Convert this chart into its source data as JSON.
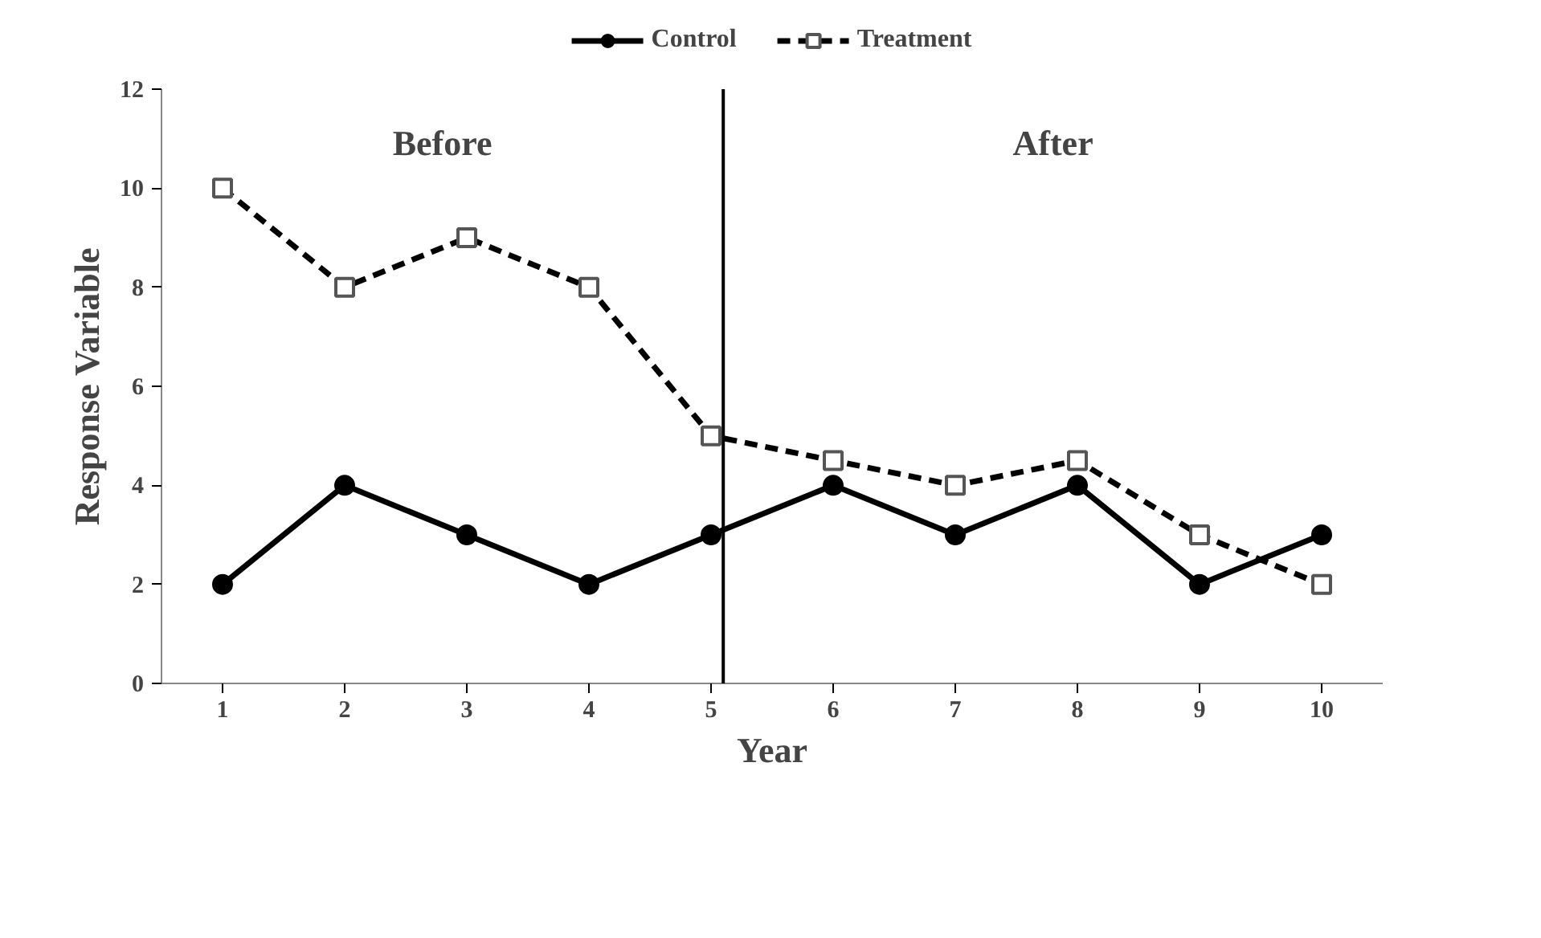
{
  "chart_data": {
    "type": "line",
    "xlabel": "Year",
    "ylabel": "Response Variable",
    "x": [
      1,
      2,
      3,
      4,
      5,
      6,
      7,
      8,
      9,
      10
    ],
    "xlim": [
      0.5,
      10.5
    ],
    "xticks": [
      1,
      2,
      3,
      4,
      5,
      6,
      7,
      8,
      9,
      10
    ],
    "ylim": [
      0,
      12
    ],
    "yticks": [
      0,
      2,
      4,
      6,
      8,
      10,
      12
    ],
    "grid": false,
    "legend": "top",
    "series": [
      {
        "name": "Control",
        "color": "#000000",
        "values": [
          2,
          4,
          3,
          2,
          3,
          4,
          3,
          4,
          2,
          3
        ],
        "marker": "circle",
        "line_style": "solid"
      },
      {
        "name": "Treatment",
        "color": "#000000",
        "values": [
          10,
          8,
          9,
          8,
          5,
          4.5,
          4,
          4.5,
          3,
          2
        ],
        "marker": "square",
        "line_style": "dashed"
      }
    ],
    "ref_lines": [
      {
        "axis": "x",
        "value": 5.1,
        "color": "#000000"
      }
    ],
    "annotations": [
      "Before",
      "After"
    ]
  }
}
